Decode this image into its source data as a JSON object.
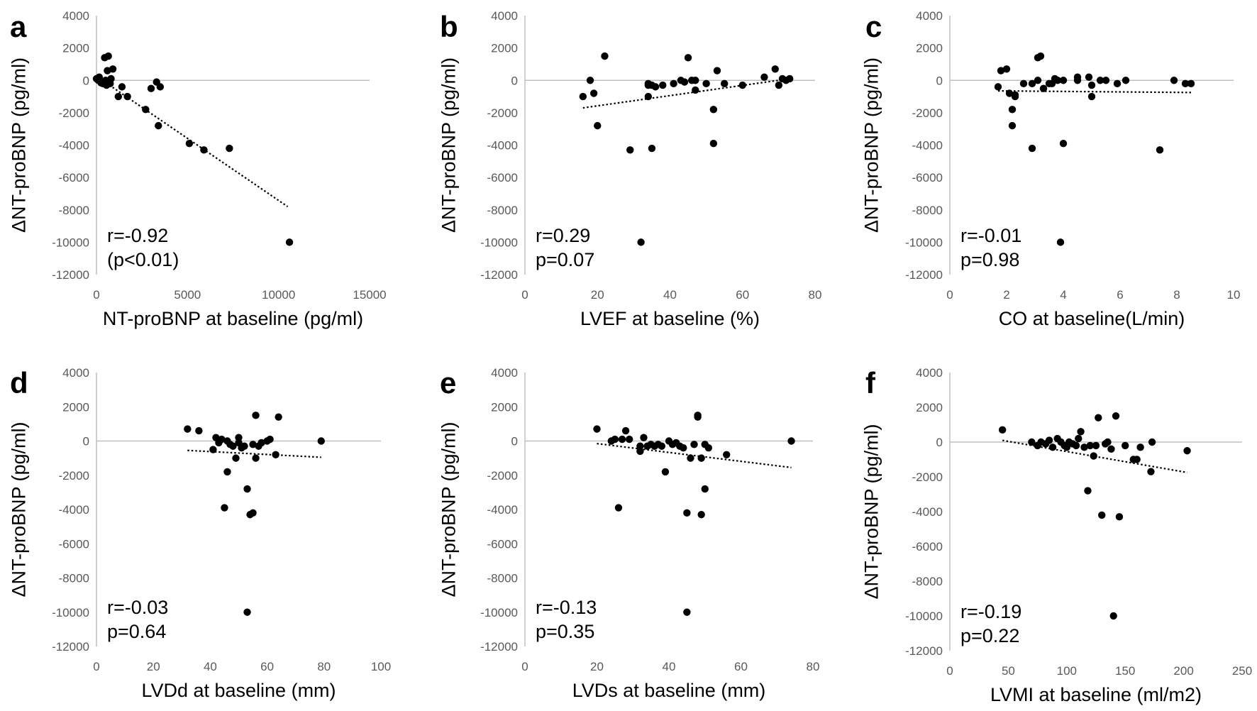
{
  "chart_data": [
    {
      "type": "scatter",
      "panel_label": "a",
      "xlabel": "NT-proBNP at baseline (pg/ml)",
      "ylabel": "ΔNT-proBNP (pg/ml)",
      "xlim": [
        0,
        15000
      ],
      "ylim": [
        -12000,
        4000
      ],
      "xticks": [
        "0",
        "5000",
        "10000",
        "15000"
      ],
      "yticks": [
        "4000",
        "2000",
        "0",
        "-2000",
        "-4000",
        "-6000",
        "-8000",
        "-10000",
        "-12000"
      ],
      "annotation": [
        "r=-0.92",
        "(p<0.01)"
      ],
      "trendline": [
        [
          0,
          250
        ],
        [
          10500,
          -7800
        ]
      ],
      "x": [
        0,
        100,
        150,
        250,
        350,
        450,
        500,
        550,
        600,
        650,
        700,
        750,
        800,
        900,
        1200,
        1400,
        1700,
        2700,
        3000,
        3300,
        3400,
        3500,
        5100,
        5900,
        7300,
        10600
      ],
      "y": [
        100,
        0,
        200,
        -150,
        -200,
        1400,
        0,
        -300,
        600,
        1500,
        -100,
        -200,
        100,
        700,
        -1000,
        -400,
        -1000,
        -1800,
        -500,
        -100,
        -2800,
        -400,
        -3900,
        -4300,
        -4200,
        -10000
      ]
    },
    {
      "type": "scatter",
      "panel_label": "b",
      "xlabel": "LVEF at baseline (%)",
      "ylabel": "ΔNT-proBNP (pg/ml)",
      "xlim": [
        0,
        80
      ],
      "ylim": [
        -12000,
        4000
      ],
      "xticks": [
        "0",
        "20",
        "40",
        "60",
        "80"
      ],
      "yticks": [
        "4000",
        "2000",
        "0",
        "-2000",
        "-4000",
        "-6000",
        "-8000",
        "-10000",
        "-12000"
      ],
      "annotation": [
        "r=0.29",
        "p=0.07"
      ],
      "trendline": [
        [
          16,
          -1700
        ],
        [
          73,
          100
        ]
      ],
      "x": [
        16,
        18,
        19,
        20,
        22,
        29,
        32,
        34,
        34,
        34,
        35,
        35,
        36,
        38,
        41,
        43,
        44,
        45,
        46,
        47,
        47,
        50,
        52,
        52,
        53,
        55,
        60,
        66,
        69,
        70,
        71,
        72,
        73
      ],
      "y": [
        -1000,
        0,
        -800,
        -2800,
        1500,
        -4300,
        -10000,
        -300,
        -200,
        -1000,
        -4200,
        -300,
        -400,
        -300,
        -200,
        0,
        -100,
        1400,
        0,
        -600,
        0,
        -200,
        -1800,
        -3900,
        600,
        -200,
        -300,
        200,
        700,
        -300,
        100,
        0,
        100
      ]
    },
    {
      "type": "scatter",
      "panel_label": "c",
      "xlabel": "CO at baseline(L/min)",
      "ylabel": "ΔNT-proBNP (pg/ml)",
      "xlim": [
        0,
        10
      ],
      "ylim": [
        -12000,
        4000
      ],
      "xticks": [
        "0",
        "2",
        "4",
        "6",
        "8",
        "10"
      ],
      "yticks": [
        "4000",
        "2000",
        "0",
        "-2000",
        "-4000",
        "-6000",
        "-8000",
        "-10000",
        "-12000"
      ],
      "annotation": [
        "r=-0.01",
        "p=0.98"
      ],
      "trendline": [
        [
          1.7,
          -650
        ],
        [
          8.5,
          -750
        ]
      ],
      "x": [
        1.7,
        1.8,
        2.0,
        2.1,
        2.2,
        2.2,
        2.3,
        2.3,
        2.6,
        2.9,
        2.9,
        3.1,
        3.1,
        3.2,
        3.3,
        3.5,
        3.6,
        3.7,
        3.8,
        3.9,
        4.0,
        4.0,
        4.5,
        4.5,
        4.9,
        5.0,
        5.0,
        5.3,
        5.5,
        5.9,
        6.2,
        7.4,
        7.9,
        8.3,
        8.5
      ],
      "y": [
        -400,
        600,
        700,
        -800,
        -1800,
        -2800,
        -1000,
        -900,
        -200,
        -4200,
        -200,
        1400,
        0,
        1500,
        -500,
        -200,
        -200,
        100,
        0,
        -10000,
        -3900,
        0,
        200,
        0,
        200,
        -1000,
        -300,
        0,
        0,
        -200,
        0,
        -4300,
        0,
        -200,
        -200
      ]
    },
    {
      "type": "scatter",
      "panel_label": "d",
      "xlabel": "LVDd at baseline (mm)",
      "ylabel": "ΔNT-proBNP (pg/ml)",
      "xlim": [
        0,
        100
      ],
      "ylim": [
        -12000,
        4000
      ],
      "xticks": [
        "0",
        "20",
        "40",
        "60",
        "80",
        "100"
      ],
      "yticks": [
        "4000",
        "2000",
        "0",
        "-2000",
        "-4000",
        "-6000",
        "-8000",
        "-10000",
        "-12000"
      ],
      "annotation": [
        "r=-0.03",
        "p=0.64"
      ],
      "trendline": [
        [
          32,
          -550
        ],
        [
          79,
          -950
        ]
      ],
      "x": [
        32,
        36,
        41,
        42,
        43,
        44,
        45,
        46,
        46,
        47,
        48,
        49,
        50,
        50,
        51,
        52,
        53,
        53,
        54,
        55,
        55,
        56,
        56,
        57,
        58,
        60,
        61,
        63,
        64,
        79
      ],
      "y": [
        700,
        600,
        -500,
        200,
        -100,
        100,
        -3900,
        0,
        -1800,
        -200,
        -300,
        -1000,
        200,
        -100,
        -400,
        -300,
        -2800,
        -10000,
        -4300,
        -200,
        -4200,
        -1000,
        1500,
        -300,
        -100,
        0,
        100,
        -800,
        1400,
        0
      ]
    },
    {
      "type": "scatter",
      "panel_label": "e",
      "xlabel": "LVDs at baseline (mm)",
      "ylabel": "ΔNT-proBNP (pg/ml)",
      "xlim": [
        0,
        80
      ],
      "ylim": [
        -12000,
        4000
      ],
      "xticks": [
        "0",
        "20",
        "40",
        "60",
        "80"
      ],
      "yticks": [
        "4000",
        "2000",
        "0",
        "-2000",
        "-4000",
        "-6000",
        "-8000",
        "-10000",
        "-12000"
      ],
      "annotation": [
        "r=-0.13",
        "p=0.35"
      ],
      "trendline": [
        [
          20,
          -150
        ],
        [
          74,
          -1550
        ]
      ],
      "x": [
        20,
        24,
        25,
        26,
        27,
        28,
        29,
        32,
        32,
        33,
        34,
        35,
        36,
        37,
        38,
        39,
        40,
        41,
        42,
        43,
        44,
        45,
        45,
        46,
        47,
        48,
        48,
        49,
        49,
        50,
        50,
        51,
        56,
        74
      ],
      "y": [
        700,
        0,
        100,
        -3900,
        100,
        600,
        100,
        -300,
        -600,
        200,
        -300,
        -200,
        -300,
        -200,
        -300,
        -1800,
        0,
        -200,
        -100,
        -300,
        -400,
        -4200,
        -10000,
        -1000,
        -200,
        1400,
        1500,
        -4300,
        -1000,
        -2800,
        -200,
        -400,
        -800,
        0
      ]
    },
    {
      "type": "scatter",
      "panel_label": "f",
      "xlabel": "LVMI at baseline (ml/m2)",
      "ylabel": "ΔNT-proBNP (pg/ml)",
      "xlim": [
        0,
        250
      ],
      "ylim": [
        -12000,
        4000
      ],
      "xticks": [
        "0",
        "50",
        "100",
        "150",
        "200",
        "250"
      ],
      "yticks": [
        "4000",
        "2000",
        "0",
        "-2000",
        "-4000",
        "-6000",
        "-8000",
        "-10000",
        "-12000"
      ],
      "annotation": [
        "r=-0.19",
        "p=0.22"
      ],
      "trendline": [
        [
          45,
          100
        ],
        [
          203,
          -1750
        ]
      ],
      "x": [
        45,
        70,
        75,
        78,
        82,
        85,
        88,
        92,
        95,
        98,
        100,
        102,
        105,
        108,
        110,
        112,
        115,
        118,
        120,
        123,
        125,
        127,
        130,
        133,
        135,
        138,
        140,
        142,
        145,
        150,
        157,
        160,
        163,
        172,
        173,
        203
      ],
      "y": [
        700,
        0,
        -200,
        0,
        -100,
        100,
        -300,
        200,
        0,
        -200,
        -300,
        0,
        -100,
        -200,
        200,
        600,
        -300,
        -2800,
        -200,
        -800,
        -200,
        1400,
        -4200,
        -100,
        0,
        -400,
        -10000,
        1500,
        -4300,
        -200,
        -1000,
        -1000,
        -300,
        -1700,
        0,
        -500
      ]
    }
  ]
}
